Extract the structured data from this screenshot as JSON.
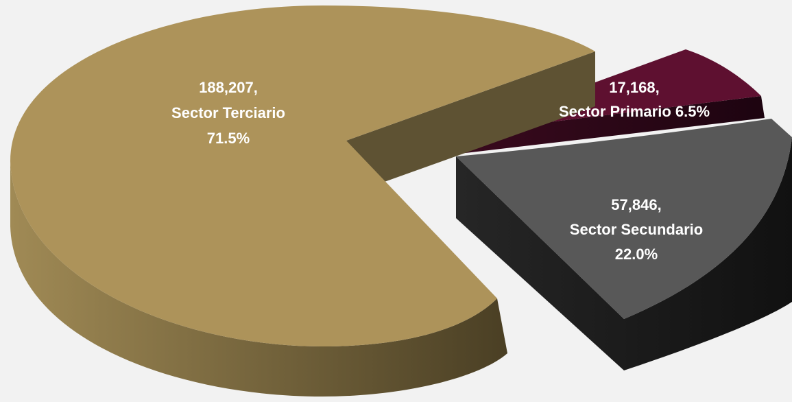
{
  "chart_data": {
    "type": "pie",
    "title": "",
    "slices": [
      {
        "id": "terciario",
        "category": "Sector Terciario",
        "value": 188207,
        "percent": 71.5,
        "label_lines": [
          "188,207,",
          "Sector Terciario",
          "71.5%"
        ],
        "colors": {
          "top": "#ad935a",
          "side_light": "#a08a55",
          "side_dark": "#4a3f24",
          "cut": "#5e5233"
        }
      },
      {
        "id": "primario",
        "category": "Sector Primario",
        "value": 17168,
        "percent": 6.5,
        "label_lines": [
          "17,168,",
          "Sector Primario 6.5%"
        ],
        "colors": {
          "top": "#5e1030",
          "side_light": "#3a0a1e",
          "side_dark": "#1d0410",
          "cut": "#2a0715"
        }
      },
      {
        "id": "secundario",
        "category": "Sector Secundario",
        "value": 57846,
        "percent": 22.0,
        "label_lines": [
          "57,846,",
          "Sector Secundario",
          "22.0%"
        ],
        "colors": {
          "top": "#585858",
          "side_light": "#2b2b2b",
          "side_dark": "#161616",
          "cut": "#202020"
        }
      }
    ],
    "style": "3d-exploded"
  }
}
